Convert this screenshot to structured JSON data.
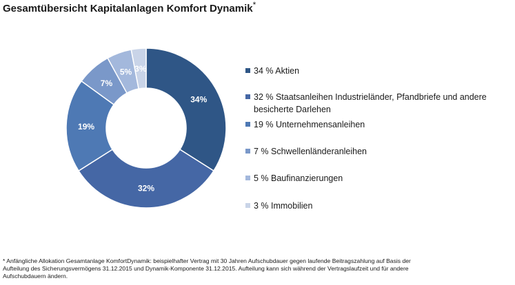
{
  "title": "Gesamtübersicht Kapitalanlagen Komfort Dynamik",
  "title_mark": "*",
  "colors": {
    "slice_1": "#2f5686",
    "slice_2": "#4567a5",
    "slice_3": "#4e79b4",
    "slice_4": "#7a98c9",
    "slice_5": "#a3b8dc",
    "slice_6": "#c9d4e8"
  },
  "chart_data": {
    "type": "pie",
    "variant": "donut",
    "title": "Gesamtübersicht Kapitalanlagen Komfort Dynamik",
    "slices": [
      {
        "value": 34,
        "label": "34%",
        "legend": "34 % Aktien"
      },
      {
        "value": 32,
        "label": "32%",
        "legend": "32 % Staatsanleihen Industrieländer, Pfandbriefe und andere besicherte Darlehen"
      },
      {
        "value": 19,
        "label": "19%",
        "legend": "19 % Unternehmensanleihen"
      },
      {
        "value": 7,
        "label": "7%",
        "legend": "7 % Schwellenländeranleihen"
      },
      {
        "value": 5,
        "label": "5%",
        "legend": "5 % Baufinanzierungen"
      },
      {
        "value": 3,
        "label": "3%",
        "legend": "3 % Immobilien"
      }
    ],
    "legend_position": "right"
  },
  "footnote": "* Anfängliche Allokation Gesamtanlage KomfortDynamik: beispielhafter Vertrag mit 30 Jahren Aufschubdauer gegen laufende Beitragszahlung auf Basis der Aufteilung des Sicherungsvermögens 31.12.2015 und Dynamik-Komponente 31.12.2015. Aufteilung kann sich während der Vertragslaufzeit und für andere Aufschubdauern ändern."
}
